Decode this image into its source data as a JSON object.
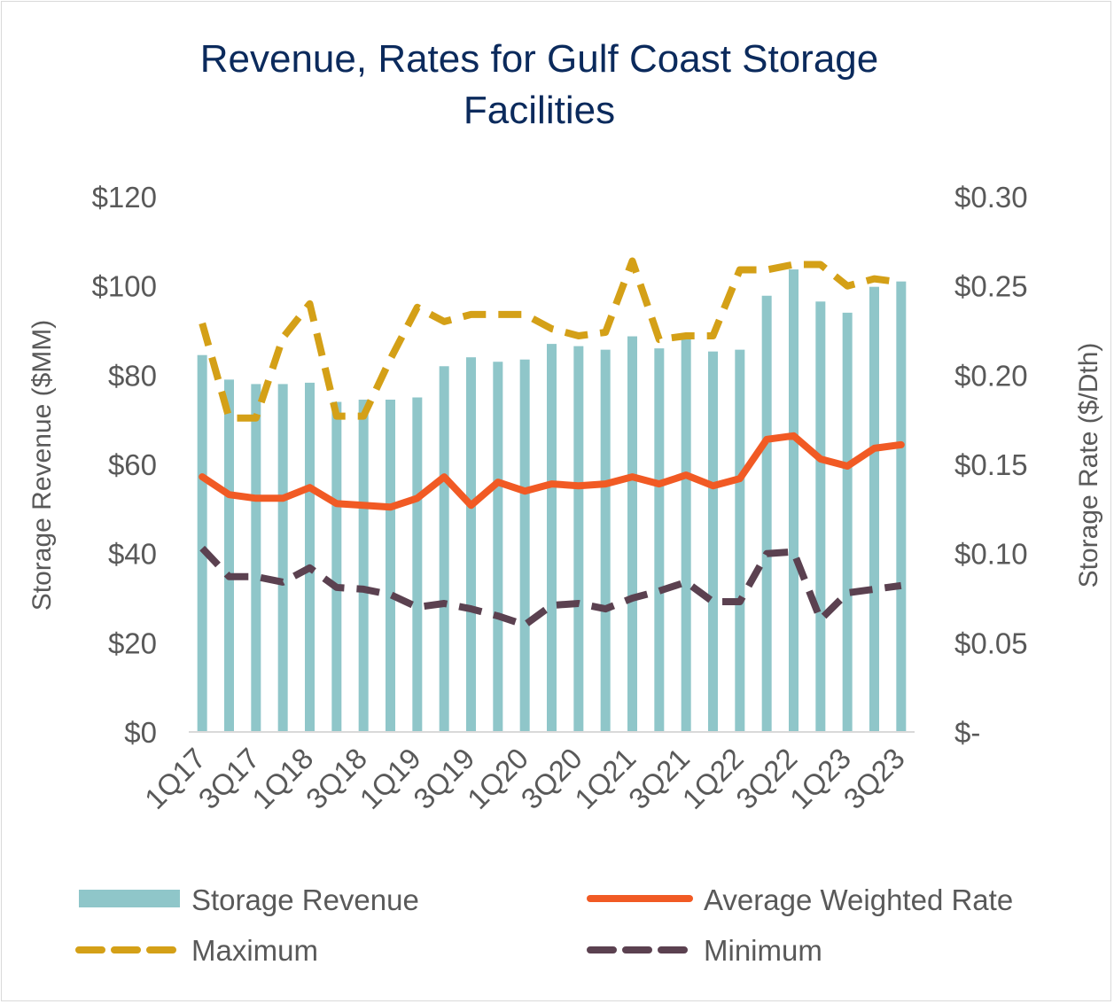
{
  "chart_data": {
    "type": "bar+line",
    "title_lines": [
      "Revenue, Rates for Gulf Coast Storage",
      "Facilities"
    ],
    "ylabel_left": "Storage Revenue ($MM)",
    "ylabel_right": "Storage Rate ($/Dth)",
    "ylim_left": [
      0,
      120
    ],
    "ylim_right": [
      0,
      0.3
    ],
    "left_ticks": [
      "$0",
      "$20",
      "$40",
      "$60",
      "$80",
      "$100",
      "$120"
    ],
    "right_ticks": [
      "$-",
      "$0.05",
      "$0.10",
      "$0.15",
      "$0.20",
      "$0.25",
      "$0.30"
    ],
    "categories": [
      "1Q17",
      "2Q17",
      "3Q17",
      "4Q17",
      "1Q18",
      "2Q18",
      "3Q18",
      "4Q18",
      "1Q19",
      "2Q19",
      "3Q19",
      "4Q19",
      "1Q20",
      "2Q20",
      "3Q20",
      "4Q20",
      "1Q21",
      "2Q21",
      "3Q21",
      "4Q21",
      "1Q22",
      "2Q22",
      "3Q22",
      "4Q22",
      "1Q23",
      "2Q23",
      "3Q23"
    ],
    "x_tick_labels": [
      "1Q17",
      "3Q17",
      "1Q18",
      "3Q18",
      "1Q19",
      "3Q19",
      "1Q20",
      "3Q20",
      "1Q21",
      "3Q21",
      "1Q22",
      "3Q22",
      "1Q23",
      "3Q23"
    ],
    "grid": false,
    "legend_position": "bottom",
    "series": [
      {
        "name": "Storage Revenue",
        "type": "bar",
        "axis": "left",
        "color": "#8fc6c9",
        "values": [
          84.5,
          79,
          78,
          78,
          78.3,
          74,
          74.5,
          74.5,
          75,
          82,
          84,
          83,
          83.5,
          87,
          86.5,
          85.7,
          88.7,
          86,
          88.5,
          85.3,
          85.7,
          97.8,
          103.7,
          96.5,
          94,
          99.8,
          101
        ]
      },
      {
        "name": "Average Weighted Rate",
        "type": "line",
        "axis": "right",
        "color": "#f15a24",
        "dash": "solid",
        "values": [
          0.143,
          0.133,
          0.131,
          0.131,
          0.137,
          0.128,
          0.127,
          0.126,
          0.131,
          0.143,
          0.127,
          0.14,
          0.135,
          0.139,
          0.138,
          0.139,
          0.143,
          0.139,
          0.144,
          0.138,
          0.142,
          0.164,
          0.166,
          0.153,
          0.149,
          0.159,
          0.161
        ]
      },
      {
        "name": "Maximum",
        "type": "line",
        "axis": "right",
        "color": "#d4a017",
        "dash": "dashed",
        "values": [
          0.229,
          0.176,
          0.176,
          0.221,
          0.24,
          0.177,
          0.177,
          0.209,
          0.238,
          0.23,
          0.234,
          0.234,
          0.234,
          0.226,
          0.222,
          0.224,
          0.264,
          0.22,
          0.222,
          0.222,
          0.259,
          0.259,
          0.262,
          0.262,
          0.25,
          0.254,
          0.252
        ]
      },
      {
        "name": "Minimum",
        "type": "line",
        "axis": "right",
        "color": "#5b4150",
        "dash": "dashed",
        "values": [
          0.103,
          0.087,
          0.087,
          0.084,
          0.092,
          0.081,
          0.08,
          0.077,
          0.07,
          0.072,
          0.069,
          0.065,
          0.06,
          0.071,
          0.072,
          0.069,
          0.075,
          0.079,
          0.084,
          0.073,
          0.073,
          0.1,
          0.101,
          0.063,
          0.078,
          0.08,
          0.082
        ]
      }
    ]
  }
}
